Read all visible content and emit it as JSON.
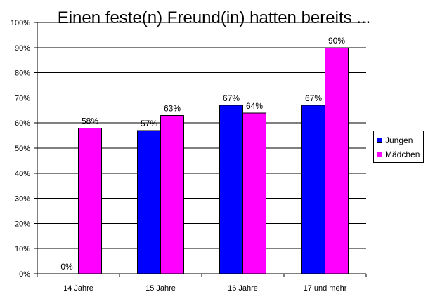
{
  "chart_data": {
    "type": "bar",
    "title": "Einen feste(n) Freund(in) hatten bereits ...",
    "categories": [
      "14 Jahre",
      "15 Jahre",
      "16 Jahre",
      "17 und mehr"
    ],
    "series": [
      {
        "name": "Jungen",
        "values": [
          0,
          57,
          67,
          67
        ],
        "labels": [
          "0%",
          "57%",
          "67%",
          "67%"
        ],
        "color": "#0000ff"
      },
      {
        "name": "Mädchen",
        "values": [
          58,
          63,
          64,
          90
        ],
        "labels": [
          "58%",
          "63%",
          "64%",
          "90%"
        ],
        "color": "#ff00ff"
      }
    ],
    "ylim": [
      0,
      100
    ],
    "yticks": [
      "0%",
      "10%",
      "20%",
      "30%",
      "40%",
      "50%",
      "60%",
      "70%",
      "80%",
      "90%",
      "100%"
    ],
    "xlabel": "",
    "ylabel": "",
    "grid": true,
    "legend_position": "right"
  }
}
